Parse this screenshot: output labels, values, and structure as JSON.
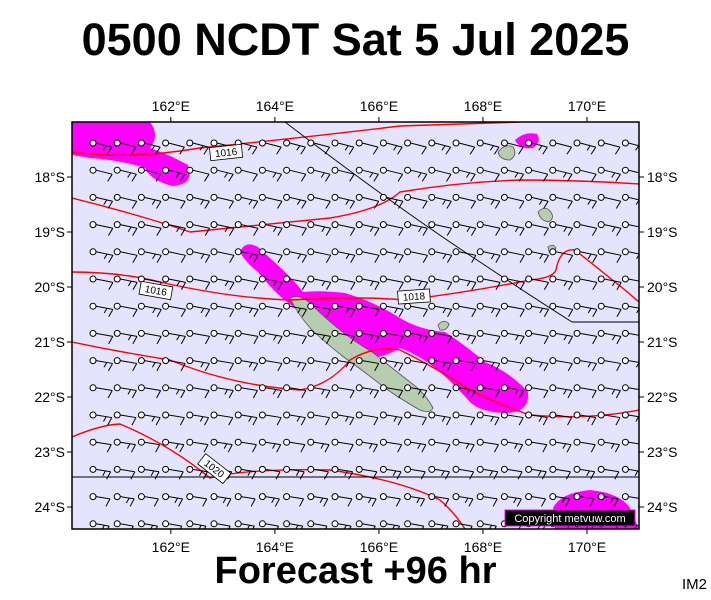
{
  "title": "0500 NCDT Sat 5 Jul 2025",
  "subtitle": "Forecast +96 hr",
  "corner_tag": "IM2",
  "copyright": "Copyright metvuw.com",
  "map": {
    "lon_range": [
      160.1,
      171.0
    ],
    "lat_range": [
      -24.4,
      -17.0
    ],
    "lon_ticks": [
      "162°E",
      "164°E",
      "166°E",
      "168°E",
      "170°E"
    ],
    "lon_tick_values": [
      162,
      164,
      166,
      168,
      170
    ],
    "lat_ticks": [
      "18°S",
      "19°S",
      "20°S",
      "21°S",
      "22°S",
      "23°S",
      "24°S"
    ],
    "lat_tick_values": [
      -18,
      -19,
      -20,
      -21,
      -22,
      -23,
      -24
    ],
    "colors": {
      "ocean": "#e4e4fc",
      "rain": "#ff00ff",
      "land": "#b8ccb0",
      "isobar": "#ff0000",
      "boundary": "#000000"
    },
    "isobar_labels": [
      "1016",
      "1016",
      "1018",
      "1020"
    ]
  }
}
